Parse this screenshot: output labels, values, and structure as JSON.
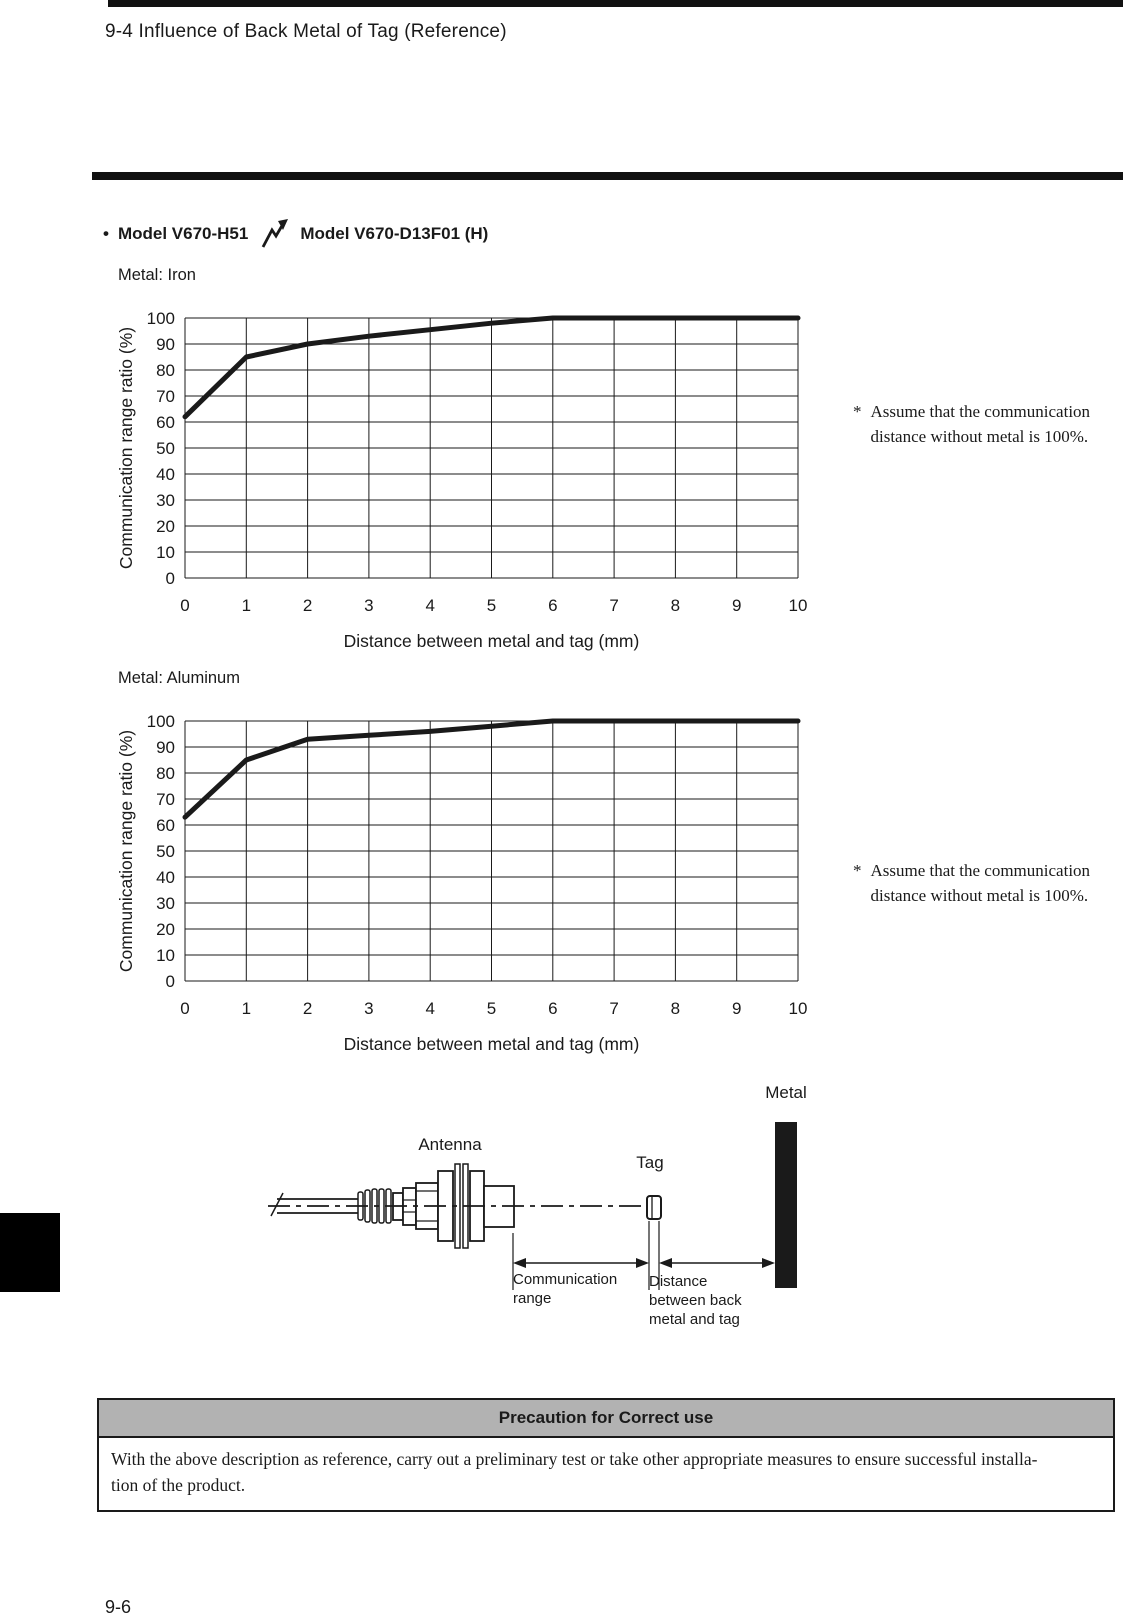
{
  "page": {
    "header_title": "9-4 Influence of Back Metal of Tag (Reference)",
    "page_number": "9-6"
  },
  "model_line": {
    "bullet": "•",
    "left_model": "Model V670-H51",
    "arrow_icon": "zigzag-up-right-arrow",
    "right_model": "Model V670-D13F01 (H)"
  },
  "chart_data": [
    {
      "type": "line",
      "title": "Metal: Iron",
      "x": [
        0,
        1,
        2,
        3,
        4,
        5,
        6,
        7,
        8,
        9,
        10
      ],
      "values": [
        62,
        85,
        90,
        93,
        95.5,
        98,
        100,
        100,
        100,
        100,
        100
      ],
      "xlabel": "Distance between metal and tag (mm)",
      "ylabel": "Communication range ratio (%)",
      "xlim": [
        0,
        10
      ],
      "ylim": [
        0,
        100
      ],
      "x_ticks": [
        0,
        1,
        2,
        3,
        4,
        5,
        6,
        7,
        8,
        9,
        10
      ],
      "y_ticks": [
        0,
        10,
        20,
        30,
        40,
        50,
        60,
        70,
        80,
        90,
        100
      ],
      "grid": true,
      "legend": "none",
      "line_color": "#1a1a1a"
    },
    {
      "type": "line",
      "title": "Metal: Aluminum",
      "x": [
        0,
        1,
        2,
        3,
        4,
        5,
        6,
        7,
        8,
        9,
        10
      ],
      "values": [
        63,
        85,
        93,
        94.5,
        96,
        98,
        100,
        100,
        100,
        100,
        100
      ],
      "xlabel": "Distance between metal and tag (mm)",
      "ylabel": "Communication range ratio (%)",
      "xlim": [
        0,
        10
      ],
      "ylim": [
        0,
        100
      ],
      "x_ticks": [
        0,
        1,
        2,
        3,
        4,
        5,
        6,
        7,
        8,
        9,
        10
      ],
      "y_ticks": [
        0,
        10,
        20,
        30,
        40,
        50,
        60,
        70,
        80,
        90,
        100
      ],
      "grid": true,
      "legend": "none",
      "line_color": "#1a1a1a"
    }
  ],
  "notes": [
    {
      "star": "*",
      "text": "Assume that the communication distance without metal is 100%."
    },
    {
      "star": "*",
      "text": "Assume that the communication distance without metal is 100%."
    }
  ],
  "diagram": {
    "antenna_label": "Antenna",
    "tag_label": "Tag",
    "metal_label": "Metal",
    "comm_range_label": "Communication range",
    "distance_label": "Distance between back metal and tag"
  },
  "precaution": {
    "title": "Precaution for Correct use",
    "body_lines": [
      "With the above description as reference, carry out a preliminary test or take other appropriate measures to ensure successful installa-",
      "tion of the product."
    ]
  }
}
